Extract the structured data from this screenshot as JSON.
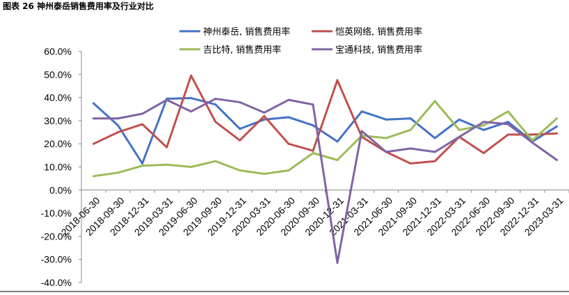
{
  "figure": {
    "title": "图表 26 神州泰岳销售费用率及行业对比"
  },
  "chart_data": {
    "type": "line",
    "categories": [
      "2018-06-30",
      "2018-09-30",
      "2018-12-31",
      "2019-03-31",
      "2019-06-30",
      "2019-09-30",
      "2019-12-31",
      "2020-03-31",
      "2020-06-30",
      "2020-09-30",
      "2020-12-31",
      "2021-03-31",
      "2021-06-30",
      "2021-09-30",
      "2021-12-31",
      "2022-03-31",
      "2022-06-30",
      "2022-09-30",
      "2022-12-31",
      "2023-03-31"
    ],
    "ylim": [
      -40,
      60
    ],
    "yticks": [
      60,
      50,
      40,
      30,
      20,
      10,
      0,
      -10,
      -20,
      -30,
      -40
    ],
    "ytick_labels": [
      "60.0%",
      "50.0%",
      "40.0%",
      "30.0%",
      "20.0%",
      "10.0%",
      "0.0%",
      "-10.0%",
      "-20.0%",
      "-30.0%",
      "-40.0%"
    ],
    "grid": false,
    "legend_position": "top",
    "series": [
      {
        "name": "神州泰岳, 销售费用率",
        "color": "#4472C4",
        "values": [
          37.5,
          28.0,
          11.5,
          39.5,
          39.8,
          37.0,
          26.5,
          30.5,
          31.5,
          28.0,
          21.0,
          34.0,
          30.5,
          31.0,
          22.5,
          30.5,
          26.0,
          29.5,
          21.0,
          27.5
        ]
      },
      {
        "name": "恺英网络, 销售费用率",
        "color": "#C0504D",
        "values": [
          20.0,
          25.0,
          28.5,
          18.5,
          49.5,
          29.5,
          21.5,
          32.0,
          20.0,
          17.0,
          47.5,
          23.0,
          16.5,
          11.5,
          12.5,
          23.0,
          16.0,
          24.0,
          24.0,
          24.5
        ]
      },
      {
        "name": "吉比特, 销售费用率",
        "color": "#9BBB59",
        "values": [
          6.0,
          7.5,
          10.5,
          11.0,
          10.0,
          12.5,
          8.5,
          7.0,
          8.5,
          16.0,
          13.0,
          23.5,
          22.5,
          26.0,
          38.5,
          26.0,
          28.0,
          34.0,
          21.5,
          31.0
        ]
      },
      {
        "name": "宝通科技, 销售费用率",
        "color": "#8064A2",
        "values": [
          31.0,
          31.0,
          33.0,
          39.0,
          34.0,
          39.5,
          38.0,
          33.5,
          39.0,
          37.0,
          -31.5,
          25.5,
          16.5,
          18.0,
          16.5,
          23.0,
          29.5,
          28.5,
          20.5,
          13.0
        ]
      }
    ]
  }
}
